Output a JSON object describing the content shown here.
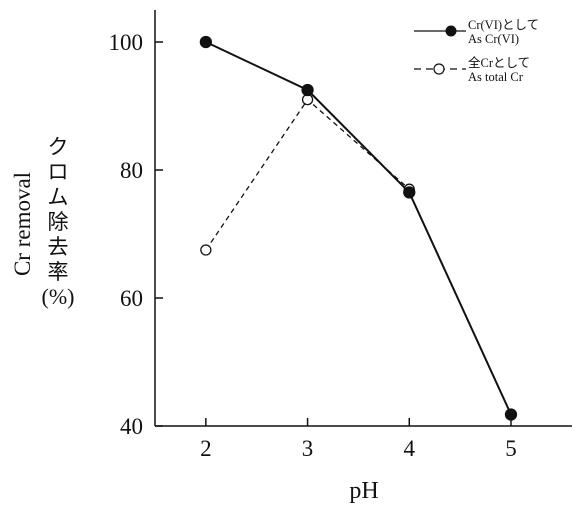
{
  "chart_data": {
    "type": "line",
    "x": [
      2,
      3,
      4,
      5
    ],
    "xlim": [
      1.5,
      5.6
    ],
    "ylim": [
      40,
      105
    ],
    "xticks": [
      "2",
      "3",
      "4",
      "5"
    ],
    "yticks": [
      "40",
      "60",
      "80",
      "100"
    ],
    "xlabel": "pH",
    "ylabel_en": "Cr removal",
    "ylabel_jp": "クロム除去率",
    "ylabel_unit": "(%)",
    "grid": false,
    "legend_position": "top-right",
    "series": [
      {
        "name_jp": "Cr(VI)として",
        "name_en": "As Cr(VI)",
        "x": [
          2,
          3,
          4,
          5
        ],
        "values": [
          100,
          92.5,
          76.5,
          41.8
        ],
        "line_style": "solid",
        "marker": "filled-circle"
      },
      {
        "name_jp": "全Crとして",
        "name_en": "As total Cr",
        "x": [
          2,
          3,
          4
        ],
        "values": [
          67.5,
          91,
          77
        ],
        "line_style": "dashed",
        "marker": "open-circle"
      }
    ]
  },
  "colors": {
    "ink": "#111111",
    "background": "#ffffff"
  }
}
